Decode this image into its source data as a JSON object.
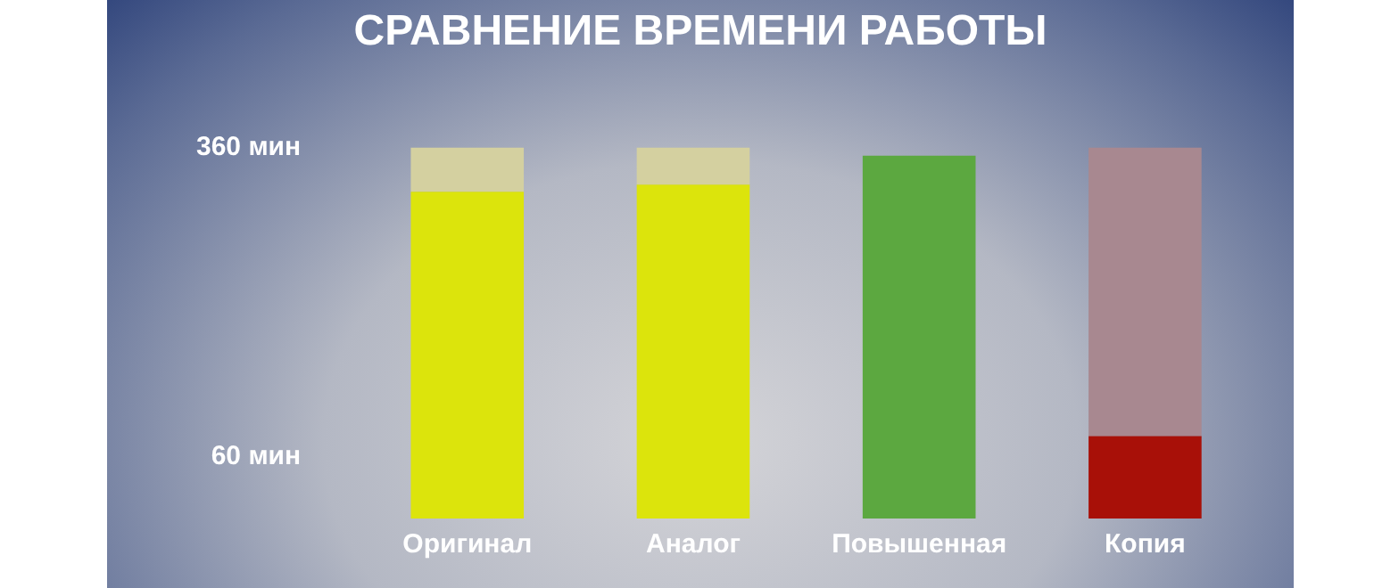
{
  "chart_data": {
    "type": "bar",
    "title": "СРАВНЕНИЕ ВРЕМЕНИ РАБОТЫ",
    "categories": [
      "Оригинал",
      "Аналог",
      "Повышенная",
      "Копия"
    ],
    "stacked": true,
    "series": [
      {
        "colors": [
          "#dce40c",
          "#dce40c",
          "#5ca840",
          "#a81008"
        ],
        "values": [
          317,
          324,
          352,
          80
        ]
      },
      {
        "colors": [
          "#d4d0a0",
          "#d4d0a0",
          "#b4b0a0",
          "#a88890"
        ],
        "values": [
          43,
          36,
          null,
          280
        ]
      }
    ],
    "ylim": [
      0,
      360
    ],
    "yticks": [
      {
        "value": 60,
        "label": "60 мин"
      },
      {
        "value": 360,
        "label": "360 мин"
      }
    ],
    "grid": false,
    "legend": false
  }
}
